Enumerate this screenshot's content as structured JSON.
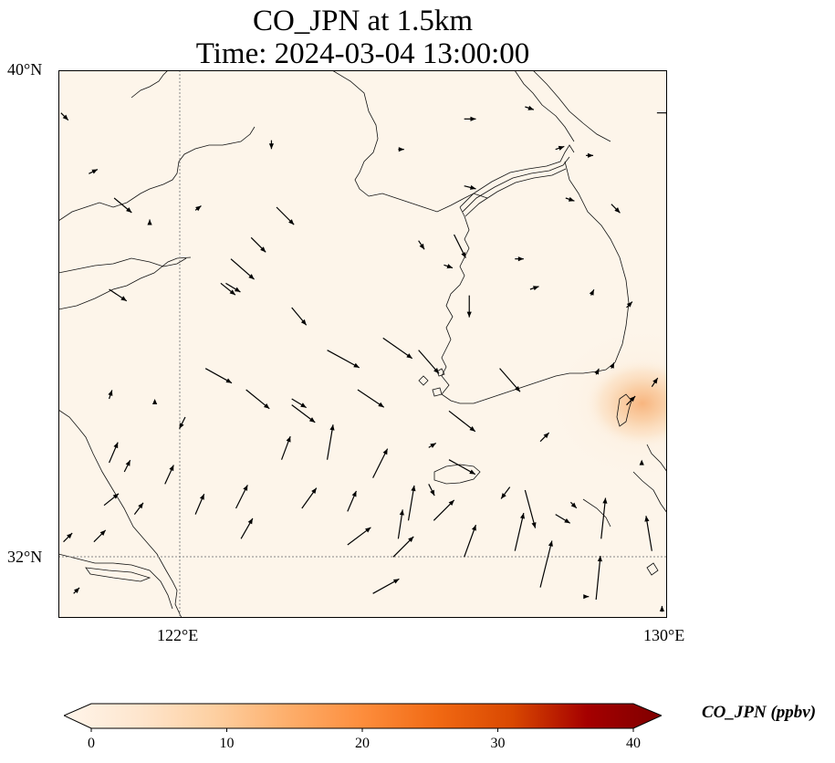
{
  "title": {
    "line1": "CO_JPN at 1.5km",
    "line2": "Time: 2024-03-04 13:00:00"
  },
  "map": {
    "extent": {
      "lon_min": 118.0,
      "lon_max": 130.0,
      "lat_min": 31.0,
      "lat_max": 40.0
    },
    "gridlines": {
      "lons": [
        122,
        130
      ],
      "lats": [
        32,
        40
      ],
      "style": "dotted"
    },
    "lat_labels": [
      {
        "lat": 40,
        "text": "40°N"
      },
      {
        "lat": 32,
        "text": "32°N"
      }
    ],
    "lon_labels": [
      {
        "lon": 122,
        "text": "122°E"
      },
      {
        "lon": 130,
        "text": "130°E"
      }
    ],
    "background_color": "#fdf5ea",
    "coastline_color": "#000000",
    "plume": {
      "center_lon": 129.6,
      "center_lat": 33.6,
      "max_ppbv": 10,
      "color": "#f7b27a"
    }
  },
  "colorbar": {
    "label": "CO_JPN (ppbv)",
    "vmin": 0,
    "vmax": 40,
    "ticks": [
      {
        "value": 0,
        "text": "0"
      },
      {
        "value": 10,
        "text": "10"
      },
      {
        "value": 20,
        "text": "20"
      },
      {
        "value": 30,
        "text": "30"
      },
      {
        "value": 40,
        "text": "40"
      }
    ],
    "colors": [
      "#fff5eb",
      "#fee6ce",
      "#fdd0a2",
      "#fdae6b",
      "#fd8d3c",
      "#f16913",
      "#d94801",
      "#a50000",
      "#7f0000"
    ]
  },
  "winds": [
    {
      "lon": 118.05,
      "lat": 39.3,
      "u": 0.5,
      "v": -0.5
    },
    {
      "lon": 118.6,
      "lat": 38.3,
      "u": 0.6,
      "v": 0.3
    },
    {
      "lon": 119.1,
      "lat": 37.9,
      "u": 1.2,
      "v": -1.0
    },
    {
      "lon": 119.8,
      "lat": 37.5,
      "u": 0.0,
      "v": 0.2
    },
    {
      "lon": 120.7,
      "lat": 37.7,
      "u": 0.4,
      "v": 0.3
    },
    {
      "lon": 121.8,
      "lat": 37.25,
      "u": 1.0,
      "v": -1.0
    },
    {
      "lon": 122.2,
      "lat": 38.85,
      "u": 0.0,
      "v": -0.6
    },
    {
      "lon": 122.3,
      "lat": 37.75,
      "u": 1.2,
      "v": -1.2
    },
    {
      "lon": 121.4,
      "lat": 36.9,
      "u": 1.6,
      "v": -1.4
    },
    {
      "lon": 121.2,
      "lat": 36.5,
      "u": 1.0,
      "v": -0.8
    },
    {
      "lon": 122.6,
      "lat": 36.1,
      "u": 1.0,
      "v": -1.2
    },
    {
      "lon": 120.9,
      "lat": 35.1,
      "u": 1.8,
      "v": -1.0
    },
    {
      "lon": 121.7,
      "lat": 34.75,
      "u": 1.6,
      "v": -1.3
    },
    {
      "lon": 122.6,
      "lat": 34.5,
      "u": 1.6,
      "v": -1.2
    },
    {
      "lon": 123.3,
      "lat": 35.4,
      "u": 2.2,
      "v": -1.2
    },
    {
      "lon": 123.9,
      "lat": 34.75,
      "u": 1.8,
      "v": -1.2
    },
    {
      "lon": 124.4,
      "lat": 35.6,
      "u": 2.0,
      "v": -1.4
    },
    {
      "lon": 125.1,
      "lat": 35.4,
      "u": 1.4,
      "v": -1.6
    },
    {
      "lon": 125.7,
      "lat": 34.4,
      "u": 1.8,
      "v": -1.4
    },
    {
      "lon": 126.1,
      "lat": 36.3,
      "u": 0.0,
      "v": -1.5
    },
    {
      "lon": 125.8,
      "lat": 37.3,
      "u": 0.8,
      "v": -1.6
    },
    {
      "lon": 126.7,
      "lat": 35.1,
      "u": 1.4,
      "v": -1.6
    },
    {
      "lon": 125.7,
      "lat": 33.6,
      "u": 1.8,
      "v": -1.0
    },
    {
      "lon": 125.3,
      "lat": 33.8,
      "u": 0.5,
      "v": 0.3
    },
    {
      "lon": 125.3,
      "lat": 33.2,
      "u": 0.4,
      "v": -0.8
    },
    {
      "lon": 126.9,
      "lat": 33.15,
      "u": -0.6,
      "v": -0.8
    },
    {
      "lon": 127.2,
      "lat": 33.1,
      "u": 0.7,
      "v": -2.6
    },
    {
      "lon": 127.8,
      "lat": 32.7,
      "u": 1.0,
      "v": -0.6
    },
    {
      "lon": 127.5,
      "lat": 33.9,
      "u": 0.6,
      "v": 0.6
    },
    {
      "lon": 128.1,
      "lat": 32.9,
      "u": 0.4,
      "v": -0.4
    },
    {
      "lon": 119.0,
      "lat": 33.55,
      "u": 0.6,
      "v": 1.4
    },
    {
      "lon": 119.3,
      "lat": 33.4,
      "u": 0.4,
      "v": 0.8
    },
    {
      "lon": 118.9,
      "lat": 32.85,
      "u": 1.0,
      "v": 0.8
    },
    {
      "lon": 118.7,
      "lat": 32.25,
      "u": 0.8,
      "v": 0.8
    },
    {
      "lon": 118.1,
      "lat": 32.25,
      "u": 0.6,
      "v": 0.6
    },
    {
      "lon": 118.3,
      "lat": 31.4,
      "u": 0.4,
      "v": 0.4
    },
    {
      "lon": 119.5,
      "lat": 32.7,
      "u": 0.6,
      "v": 0.8
    },
    {
      "lon": 119.0,
      "lat": 34.6,
      "u": 0.2,
      "v": 0.6
    },
    {
      "lon": 120.5,
      "lat": 34.3,
      "u": -0.4,
      "v": -0.8
    },
    {
      "lon": 119.9,
      "lat": 34.6,
      "u": 0.0,
      "v": 0.0
    },
    {
      "lon": 120.1,
      "lat": 33.2,
      "u": 0.6,
      "v": 1.3
    },
    {
      "lon": 120.7,
      "lat": 32.7,
      "u": 0.6,
      "v": 1.4
    },
    {
      "lon": 121.5,
      "lat": 32.8,
      "u": 0.8,
      "v": 1.6
    },
    {
      "lon": 121.6,
      "lat": 32.3,
      "u": 0.8,
      "v": 1.4
    },
    {
      "lon": 122.4,
      "lat": 33.6,
      "u": 0.6,
      "v": 1.6
    },
    {
      "lon": 122.8,
      "lat": 32.8,
      "u": 1.0,
      "v": 1.4
    },
    {
      "lon": 123.3,
      "lat": 33.6,
      "u": 0.4,
      "v": 2.4
    },
    {
      "lon": 124.2,
      "lat": 33.3,
      "u": 1.0,
      "v": 2.0
    },
    {
      "lon": 124.6,
      "lat": 32.0,
      "u": 1.4,
      "v": 1.4
    },
    {
      "lon": 123.7,
      "lat": 32.2,
      "u": 1.6,
      "v": 1.2
    },
    {
      "lon": 125.4,
      "lat": 32.6,
      "u": 1.4,
      "v": 1.4
    },
    {
      "lon": 127.0,
      "lat": 32.1,
      "u": 0.6,
      "v": 2.6
    },
    {
      "lon": 127.5,
      "lat": 31.5,
      "u": 0.8,
      "v": 3.2
    },
    {
      "lon": 128.7,
      "lat": 32.3,
      "u": 0.3,
      "v": 2.8
    },
    {
      "lon": 126.0,
      "lat": 32.0,
      "u": 0.8,
      "v": 2.2
    },
    {
      "lon": 124.9,
      "lat": 32.6,
      "u": 0.4,
      "v": 2.4
    },
    {
      "lon": 124.7,
      "lat": 32.3,
      "u": 0.3,
      "v": 2.0
    },
    {
      "lon": 123.7,
      "lat": 32.75,
      "u": 0.6,
      "v": 1.4
    },
    {
      "lon": 124.2,
      "lat": 31.4,
      "u": 1.8,
      "v": 1.0
    },
    {
      "lon": 128.6,
      "lat": 31.3,
      "u": 0.3,
      "v": 3.0
    },
    {
      "lon": 129.5,
      "lat": 33.6,
      "u": 0.0,
      "v": 0.0
    },
    {
      "lon": 129.7,
      "lat": 32.1,
      "u": -0.4,
      "v": 2.4
    },
    {
      "lon": 129.2,
      "lat": 34.5,
      "u": 0.6,
      "v": 0.6
    },
    {
      "lon": 129.7,
      "lat": 34.8,
      "u": 0.4,
      "v": 0.6
    },
    {
      "lon": 128.9,
      "lat": 35.1,
      "u": 0.2,
      "v": 0.4
    },
    {
      "lon": 128.5,
      "lat": 36.3,
      "u": 0.2,
      "v": 0.4
    },
    {
      "lon": 129.2,
      "lat": 36.1,
      "u": 0.4,
      "v": 0.4
    },
    {
      "lon": 128.6,
      "lat": 35.0,
      "u": 0.2,
      "v": 0.4
    },
    {
      "lon": 128.9,
      "lat": 37.8,
      "u": 0.6,
      "v": -0.6
    },
    {
      "lon": 127.0,
      "lat": 36.9,
      "u": 0.6,
      "v": 0.0
    },
    {
      "lon": 125.1,
      "lat": 37.2,
      "u": 0.4,
      "v": -0.6
    },
    {
      "lon": 124.7,
      "lat": 38.7,
      "u": 0.4,
      "v": 0.0
    },
    {
      "lon": 126.0,
      "lat": 38.1,
      "u": 0.8,
      "v": -0.2
    },
    {
      "lon": 128.4,
      "lat": 38.6,
      "u": 0.5,
      "v": 0.0
    },
    {
      "lon": 126.0,
      "lat": 39.2,
      "u": 0.8,
      "v": 0.0
    },
    {
      "lon": 127.2,
      "lat": 39.4,
      "u": 0.6,
      "v": -0.2
    },
    {
      "lon": 129.8,
      "lat": 39.3,
      "u": 1.0,
      "v": 0.0
    },
    {
      "lon": 127.8,
      "lat": 38.7,
      "u": 0.6,
      "v": 0.2
    },
    {
      "lon": 128.0,
      "lat": 37.9,
      "u": 0.6,
      "v": -0.2
    },
    {
      "lon": 127.3,
      "lat": 36.4,
      "u": 0.6,
      "v": 0.2
    },
    {
      "lon": 125.6,
      "lat": 36.8,
      "u": 0.6,
      "v": -0.2
    },
    {
      "lon": 129.9,
      "lat": 31.1,
      "u": 0.0,
      "v": 0.4
    },
    {
      "lon": 128.4,
      "lat": 31.35,
      "u": 0.2,
      "v": 0.0
    },
    {
      "lon": 121.3,
      "lat": 36.5,
      "u": 1.0,
      "v": -0.6
    },
    {
      "lon": 122.6,
      "lat": 34.6,
      "u": 1.0,
      "v": -0.6
    },
    {
      "lon": 119.0,
      "lat": 36.4,
      "u": 1.2,
      "v": -0.8
    }
  ]
}
